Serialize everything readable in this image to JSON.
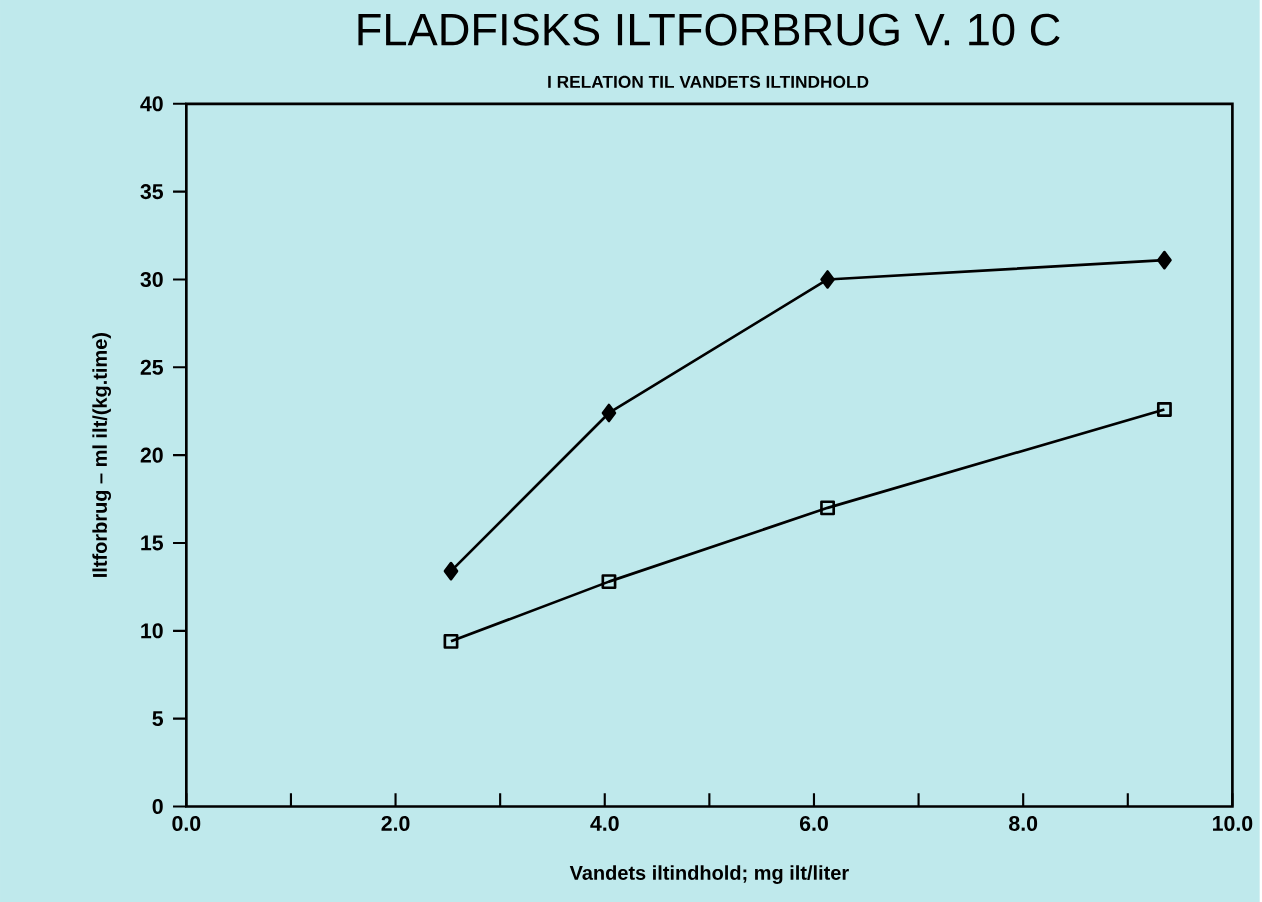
{
  "chart_data": {
    "type": "line",
    "title": "FLADFISKS ILTFORBRUG V. 10 C",
    "subtitle": "I RELATION TIL VANDETS ILTINDHOLD",
    "xlabel": "Vandets iltindhold; mg ilt/liter",
    "ylabel": "Iltforbrug – ml ilt/(kg.time)",
    "x": [
      2.53,
      4.04,
      6.13,
      9.35
    ],
    "series": [
      {
        "color": "#000000",
        "marker": "diamond",
        "values": [
          13.4,
          22.4,
          30.0,
          31.1
        ]
      },
      {
        "color": "#000000",
        "marker": "square",
        "values": [
          9.4,
          12.8,
          17.0,
          22.6
        ]
      }
    ],
    "xlim": [
      0,
      10
    ],
    "ylim": [
      0,
      40
    ],
    "xticks": [
      {
        "value": 0,
        "label": "0.0"
      },
      {
        "value": 1,
        "label": null
      },
      {
        "value": 2,
        "label": "2.0"
      },
      {
        "value": 3,
        "label": null
      },
      {
        "value": 4,
        "label": "4.0"
      },
      {
        "value": 5,
        "label": null
      },
      {
        "value": 6,
        "label": "6.0"
      },
      {
        "value": 7,
        "label": null
      },
      {
        "value": 8,
        "label": "8.0"
      },
      {
        "value": 9,
        "label": null
      },
      {
        "value": 10,
        "label": "10.0"
      }
    ],
    "yticks": [
      0,
      5,
      10,
      15,
      20,
      25,
      30,
      35,
      40
    ],
    "grid": false,
    "line_style": "solid"
  }
}
